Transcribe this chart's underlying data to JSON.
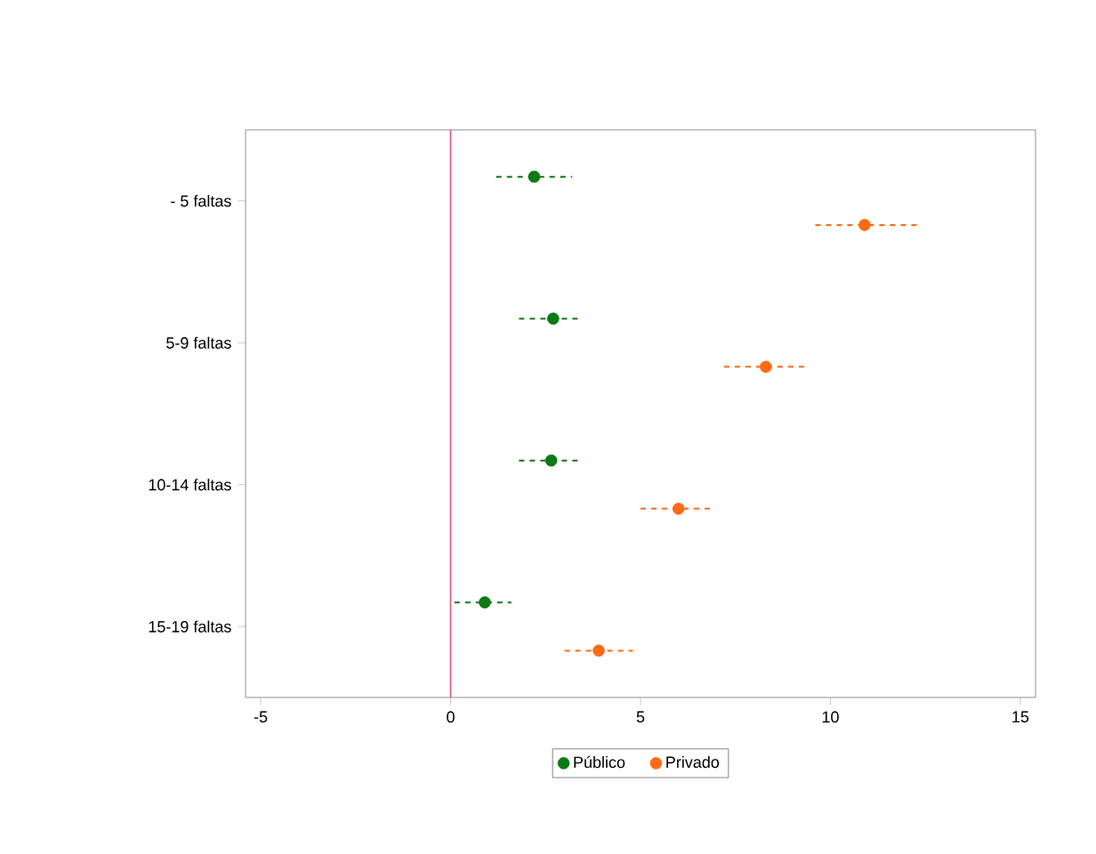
{
  "chart_data": {
    "type": "scatter",
    "orientation": "horizontal",
    "categories": [
      "- 5 faltas",
      "5-9 faltas",
      "10-14 faltas",
      "15-19 faltas"
    ],
    "series": [
      {
        "name": "Público",
        "color": "#0b7a12",
        "values": [
          2.2,
          2.7,
          2.65,
          0.9
        ],
        "errors": [
          [
            1.2,
            3.2
          ],
          [
            1.8,
            3.4
          ],
          [
            1.8,
            3.4
          ],
          [
            0.1,
            1.6
          ]
        ]
      },
      {
        "name": "Privado",
        "color": "#ff6a13",
        "values": [
          10.9,
          8.3,
          6.0,
          3.9
        ],
        "errors": [
          [
            9.6,
            12.3
          ],
          [
            7.2,
            9.4
          ],
          [
            5.0,
            6.95
          ],
          [
            3.0,
            4.8
          ]
        ]
      }
    ],
    "xlim": [
      -5.4,
      15.4
    ],
    "xticks": [
      -5,
      0,
      5,
      10,
      15
    ],
    "legend": "bottom",
    "ref_lines": [
      {
        "axis": "x",
        "value": 0,
        "color": "#e0507a"
      }
    ]
  }
}
